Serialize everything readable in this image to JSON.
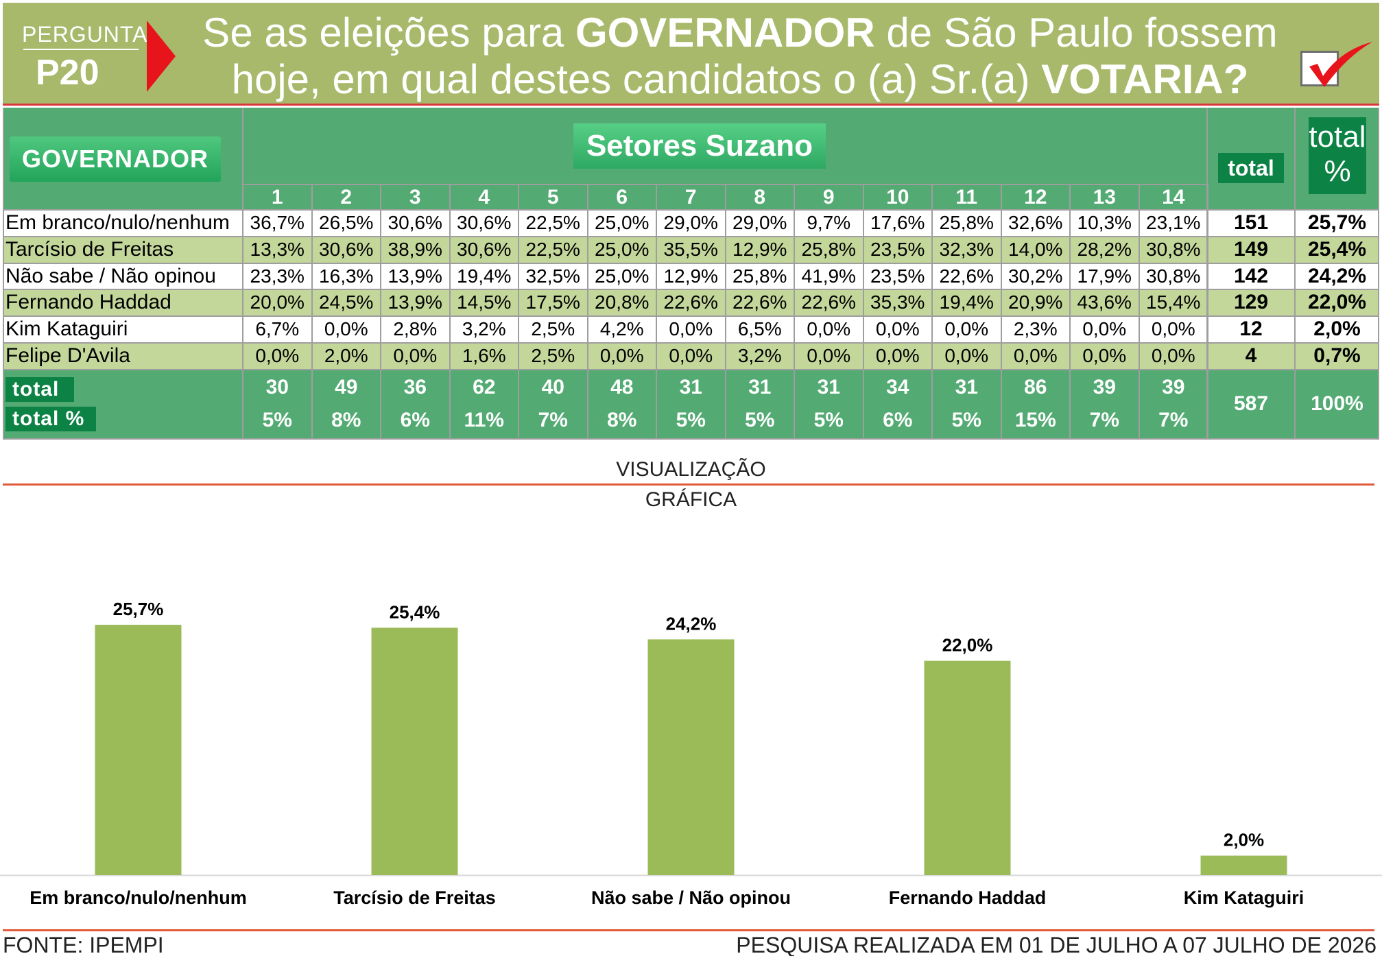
{
  "header": {
    "pergunta": "PERGUNTA",
    "pnum": "P20",
    "q_line1_a": "Se as eleições para ",
    "q_line1_b": "GOVERNADOR",
    "q_line1_c": " de São Paulo fossem",
    "q_line2_a": "hoje, em qual destes candidatos o (a) Sr.(a) ",
    "q_line2_b": "VOTARIA?",
    "check_icon": "checkmark-icon"
  },
  "table": {
    "corner_label": "GOVERNADOR",
    "group_label": "Setores Suzano",
    "total_label": "total",
    "totalpct_label_1": "total",
    "totalpct_label_2": "%",
    "columns": [
      "1",
      "2",
      "3",
      "4",
      "5",
      "6",
      "7",
      "8",
      "9",
      "10",
      "11",
      "12",
      "13",
      "14"
    ],
    "rows": [
      {
        "label": "Em branco/nulo/nenhum",
        "values": [
          "36,7%",
          "26,5%",
          "30,6%",
          "30,6%",
          "22,5%",
          "25,0%",
          "29,0%",
          "29,0%",
          "9,7%",
          "17,6%",
          "25,8%",
          "32,6%",
          "10,3%",
          "23,1%"
        ],
        "total": "151",
        "pct": "25,7%",
        "band": "white"
      },
      {
        "label": "Tarcísio de Freitas",
        "values": [
          "13,3%",
          "30,6%",
          "38,9%",
          "30,6%",
          "22,5%",
          "25,0%",
          "35,5%",
          "12,9%",
          "25,8%",
          "23,5%",
          "32,3%",
          "14,0%",
          "28,2%",
          "30,8%"
        ],
        "total": "149",
        "pct": "25,4%",
        "band": "green"
      },
      {
        "label": "Não sabe / Não opinou",
        "values": [
          "23,3%",
          "16,3%",
          "13,9%",
          "19,4%",
          "32,5%",
          "25,0%",
          "12,9%",
          "25,8%",
          "41,9%",
          "23,5%",
          "22,6%",
          "30,2%",
          "17,9%",
          "30,8%"
        ],
        "total": "142",
        "pct": "24,2%",
        "band": "white"
      },
      {
        "label": "Fernando Haddad",
        "values": [
          "20,0%",
          "24,5%",
          "13,9%",
          "14,5%",
          "17,5%",
          "20,8%",
          "22,6%",
          "22,6%",
          "22,6%",
          "35,3%",
          "19,4%",
          "20,9%",
          "43,6%",
          "15,4%"
        ],
        "total": "129",
        "pct": "22,0%",
        "band": "green"
      },
      {
        "label": "Kim Kataguiri",
        "values": [
          "6,7%",
          "0,0%",
          "2,8%",
          "3,2%",
          "2,5%",
          "4,2%",
          "0,0%",
          "6,5%",
          "0,0%",
          "0,0%",
          "0,0%",
          "2,3%",
          "0,0%",
          "0,0%"
        ],
        "total": "12",
        "pct": "2,0%",
        "band": "white"
      },
      {
        "label": "Felipe D'Avila",
        "values": [
          "0,0%",
          "2,0%",
          "0,0%",
          "1,6%",
          "2,5%",
          "0,0%",
          "0,0%",
          "3,2%",
          "0,0%",
          "0,0%",
          "0,0%",
          "0,0%",
          "0,0%",
          "0,0%"
        ],
        "total": "4",
        "pct": "0,7%",
        "band": "green"
      }
    ],
    "footer_total_label": "total",
    "footer_pct_label": "total %",
    "footer_totals": [
      "30",
      "49",
      "36",
      "62",
      "40",
      "48",
      "31",
      "31",
      "31",
      "34",
      "31",
      "86",
      "39",
      "39"
    ],
    "footer_pcts": [
      "5%",
      "8%",
      "6%",
      "11%",
      "7%",
      "8%",
      "5%",
      "5%",
      "5%",
      "6%",
      "5%",
      "15%",
      "7%",
      "7%"
    ],
    "grand_total": "587",
    "grand_pct": "100%"
  },
  "viz_title_1": "VISUALIZAÇÃO",
  "viz_title_2": "GRÁFICA",
  "chart_data": {
    "type": "bar",
    "categories": [
      "Em branco/nulo/nenhum",
      "Tarcísio de Freitas",
      "Não sabe / Não opinou",
      "Fernando Haddad",
      "Kim Kataguiri"
    ],
    "values": [
      25.7,
      25.4,
      24.2,
      22.0,
      2.0
    ],
    "data_labels": [
      "25,7%",
      "25,4%",
      "24,2%",
      "22,0%",
      "2,0%"
    ],
    "ylim": [
      0,
      30
    ],
    "grid": false,
    "legend": "none",
    "bar_color": "#9bbb59"
  },
  "footer": {
    "source": "FONTE: IPEMPI",
    "period": "PESQUISA REALIZADA EM 01 DE JULHO A 07 JULHO DE 2026"
  }
}
